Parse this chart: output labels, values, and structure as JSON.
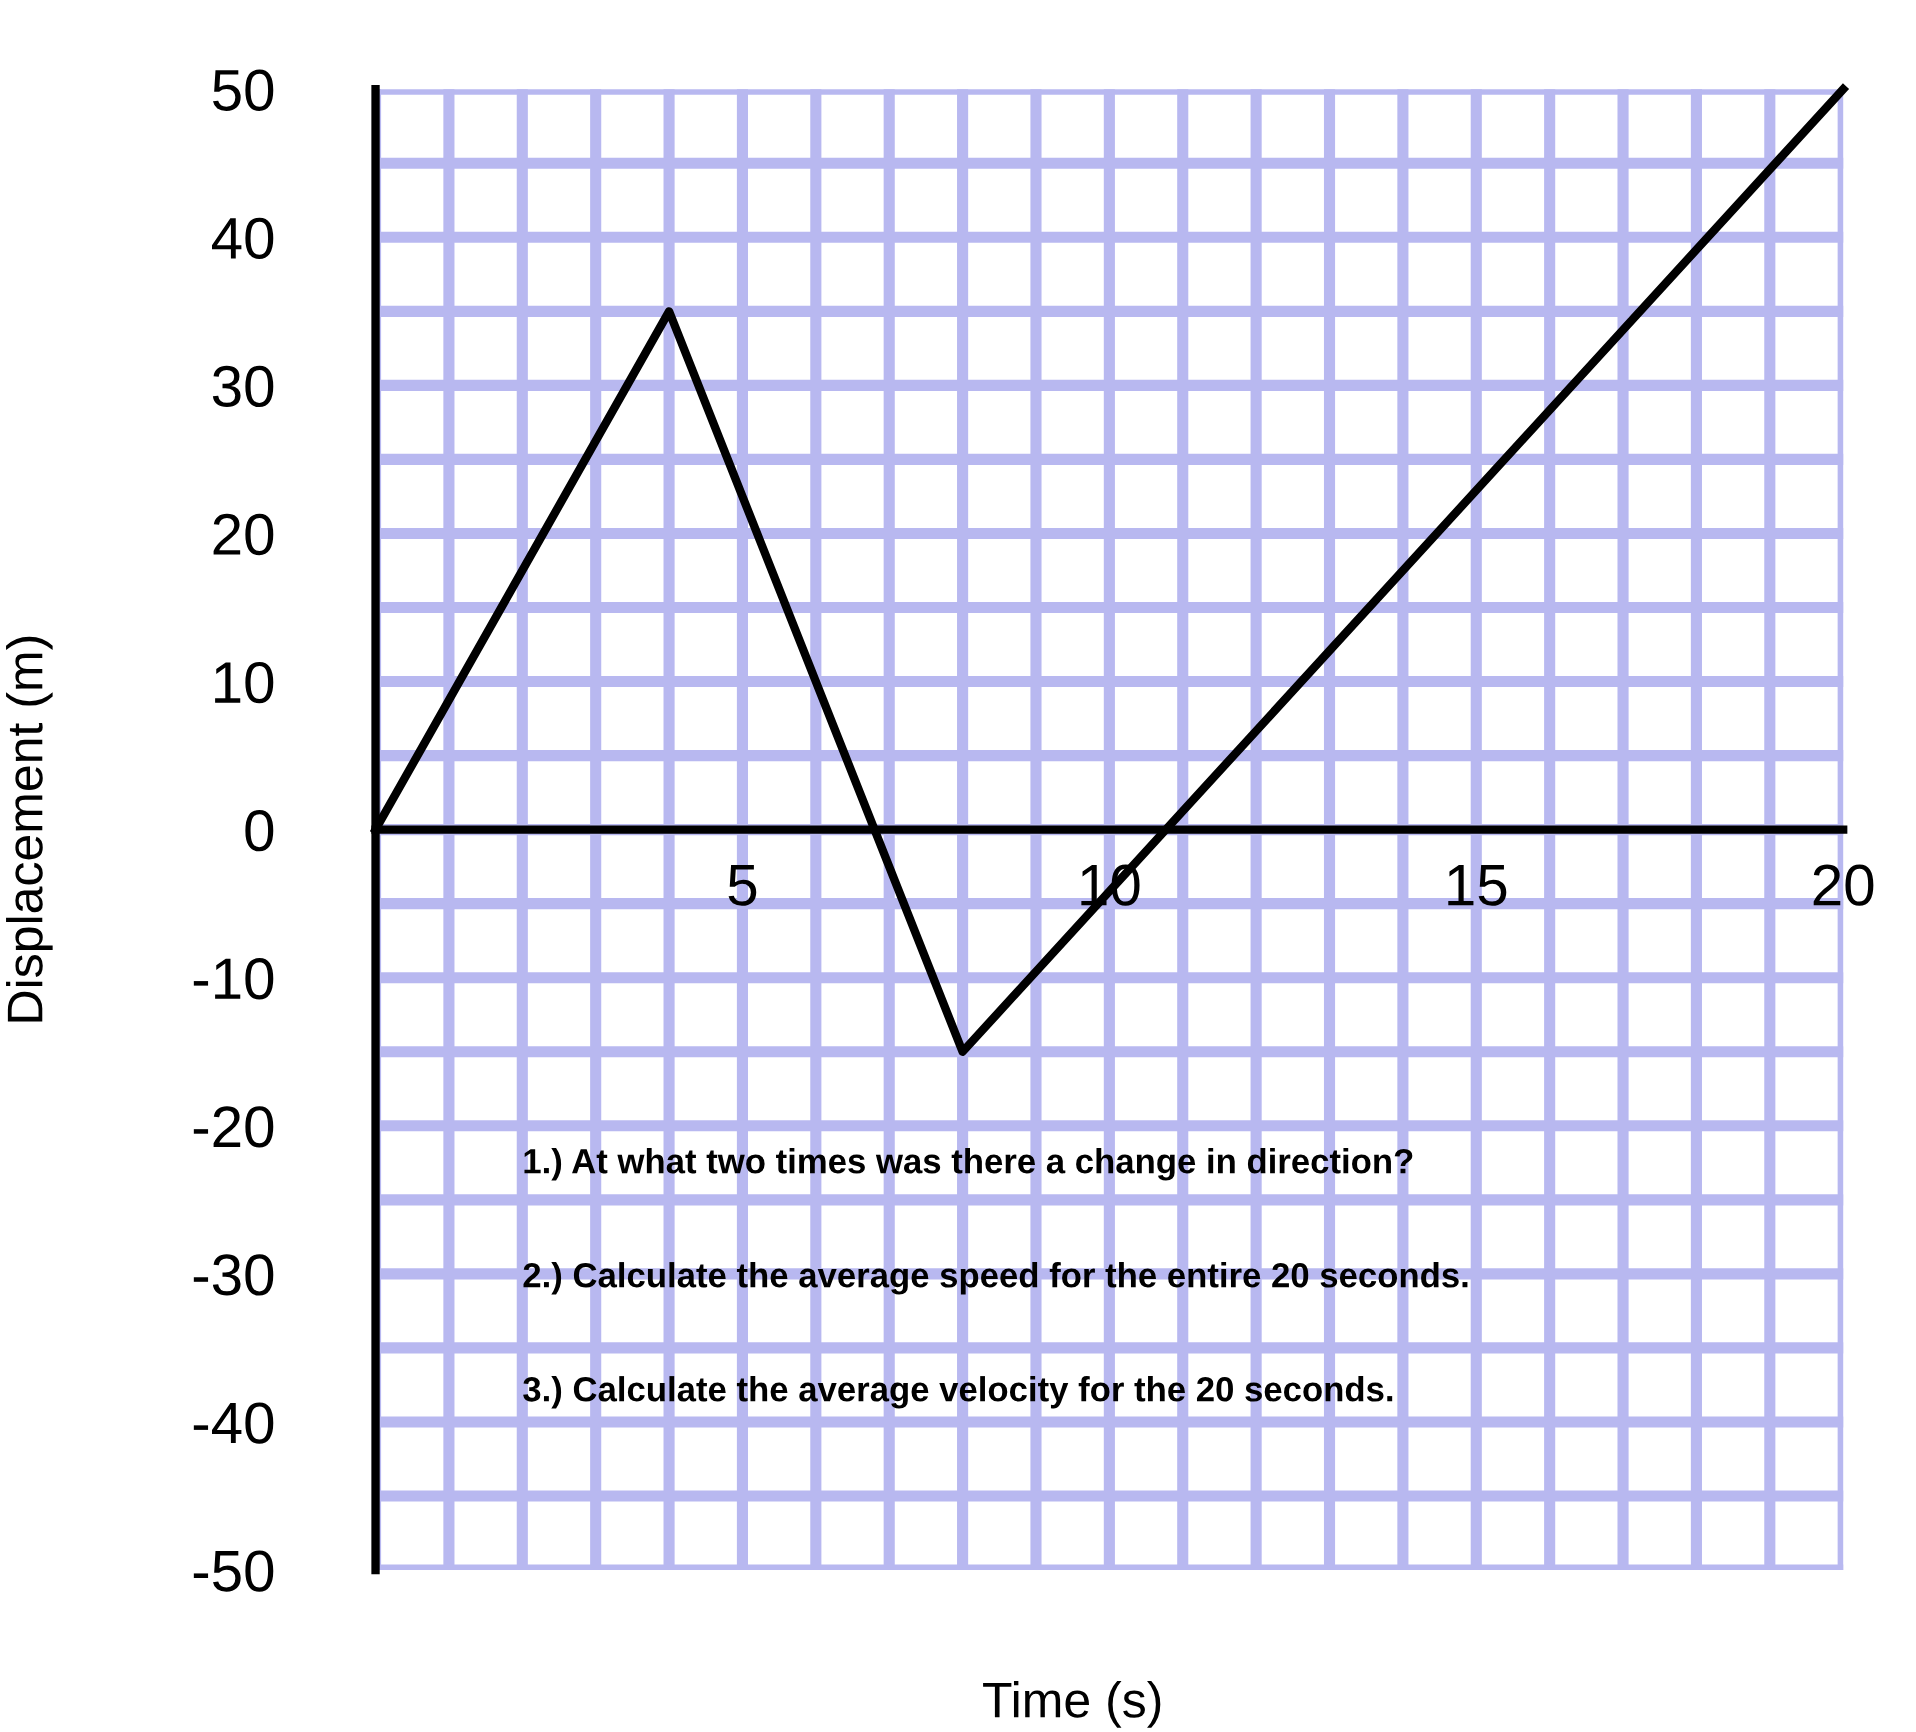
{
  "chart_data": {
    "type": "line",
    "xlabel": "Time (s)",
    "ylabel": "Displacement (m)",
    "x": [
      0,
      4,
      8,
      20
    ],
    "series": [
      {
        "color": "#000000",
        "values": [
          0,
          35,
          -15,
          50
        ]
      }
    ],
    "xlim": [
      0,
      20
    ],
    "ylim": [
      -50,
      50
    ],
    "xticks": [
      {
        "value": 0,
        "label": null
      },
      {
        "value": 1,
        "label": null
      },
      {
        "value": 2,
        "label": null
      },
      {
        "value": 3,
        "label": null
      },
      {
        "value": 4,
        "label": null
      },
      5,
      {
        "value": 6,
        "label": null
      },
      {
        "value": 7,
        "label": null
      },
      {
        "value": 8,
        "label": null
      },
      {
        "value": 9,
        "label": null
      },
      10,
      {
        "value": 11,
        "label": null
      },
      {
        "value": 12,
        "label": null
      },
      {
        "value": 13,
        "label": null
      },
      {
        "value": 14,
        "label": null
      },
      15,
      {
        "value": 16,
        "label": null
      },
      {
        "value": 17,
        "label": null
      },
      {
        "value": 18,
        "label": null
      },
      {
        "value": 19,
        "label": null
      },
      20
    ],
    "yticks": [
      -50,
      {
        "value": -45,
        "label": null
      },
      -40,
      {
        "value": -35,
        "label": null
      },
      -30,
      {
        "value": -25,
        "label": null
      },
      -20,
      {
        "value": -15,
        "label": null
      },
      -10,
      {
        "value": -5,
        "label": null
      },
      0,
      {
        "value": 5,
        "label": null
      },
      10,
      {
        "value": 15,
        "label": null
      },
      20,
      {
        "value": 25,
        "label": null
      },
      30,
      {
        "value": 35,
        "label": null
      },
      40,
      {
        "value": 45,
        "label": null
      },
      50
    ],
    "grid": true,
    "marker": "none",
    "line_style": "solid",
    "annotations": [
      "1.) At what two times was there a change in direction?",
      "2.) Calculate the average speed for the entire 20 seconds.",
      "3.) Calculate the average velocity for the 20 seconds."
    ]
  }
}
